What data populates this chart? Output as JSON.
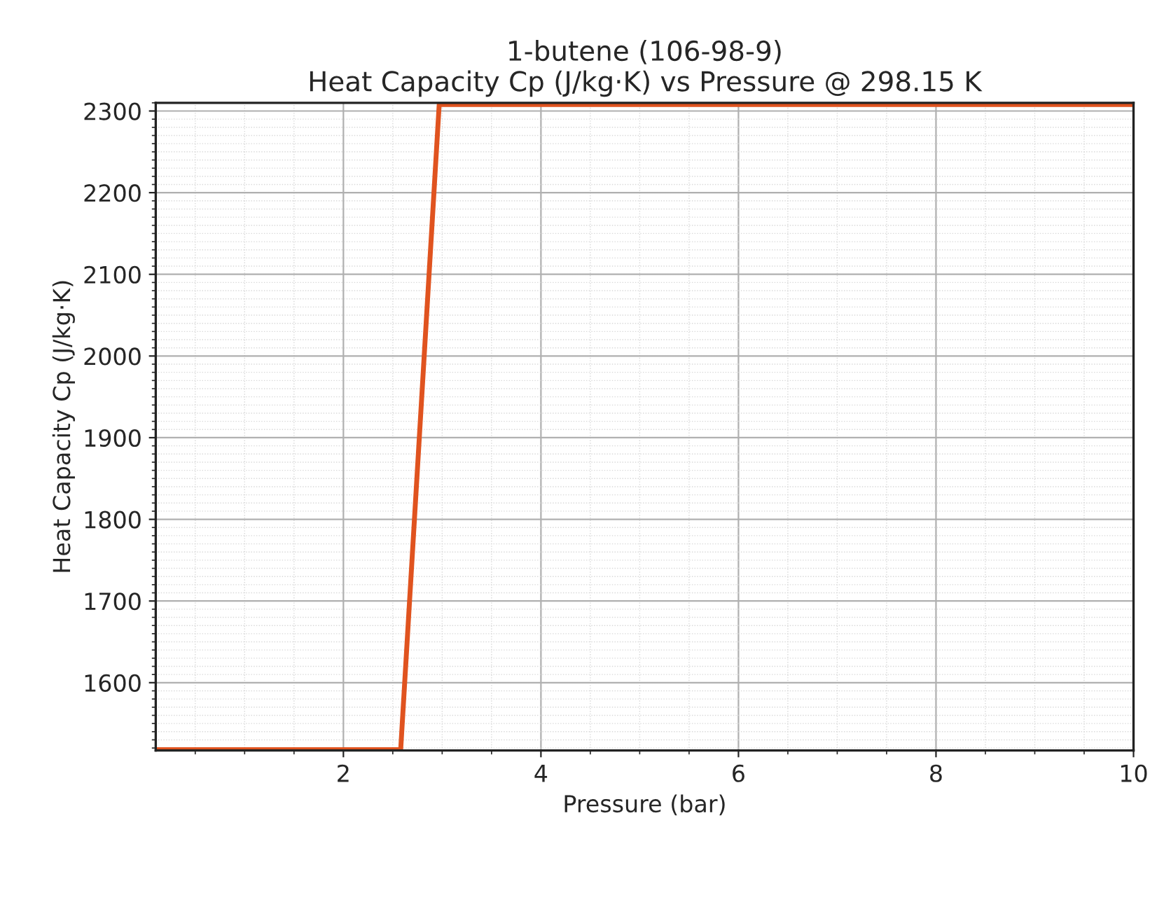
{
  "chart_data": {
    "type": "line",
    "title": "1-butene (106-98-9)\nHeat Capacity Cp (J/kg·K) vs Pressure @ 298.15 K",
    "xlabel": "Pressure (bar)",
    "ylabel": "Heat Capacity Cp (J/kg·K)",
    "series": [
      {
        "color": "#e0531f",
        "x": [
          0.1,
          2.58,
          2.97,
          10
        ],
        "values": [
          1518,
          1518,
          2308,
          2308
        ]
      }
    ],
    "xlim": [
      0.1,
      10
    ],
    "xticks": [
      2,
      4,
      6,
      8,
      10
    ],
    "ylim": [
      1517,
      2310
    ],
    "yticks": [
      1600,
      1700,
      1800,
      1900,
      2000,
      2100,
      2200,
      2300
    ],
    "grid": true,
    "marker": "none",
    "line_style": "solid"
  }
}
